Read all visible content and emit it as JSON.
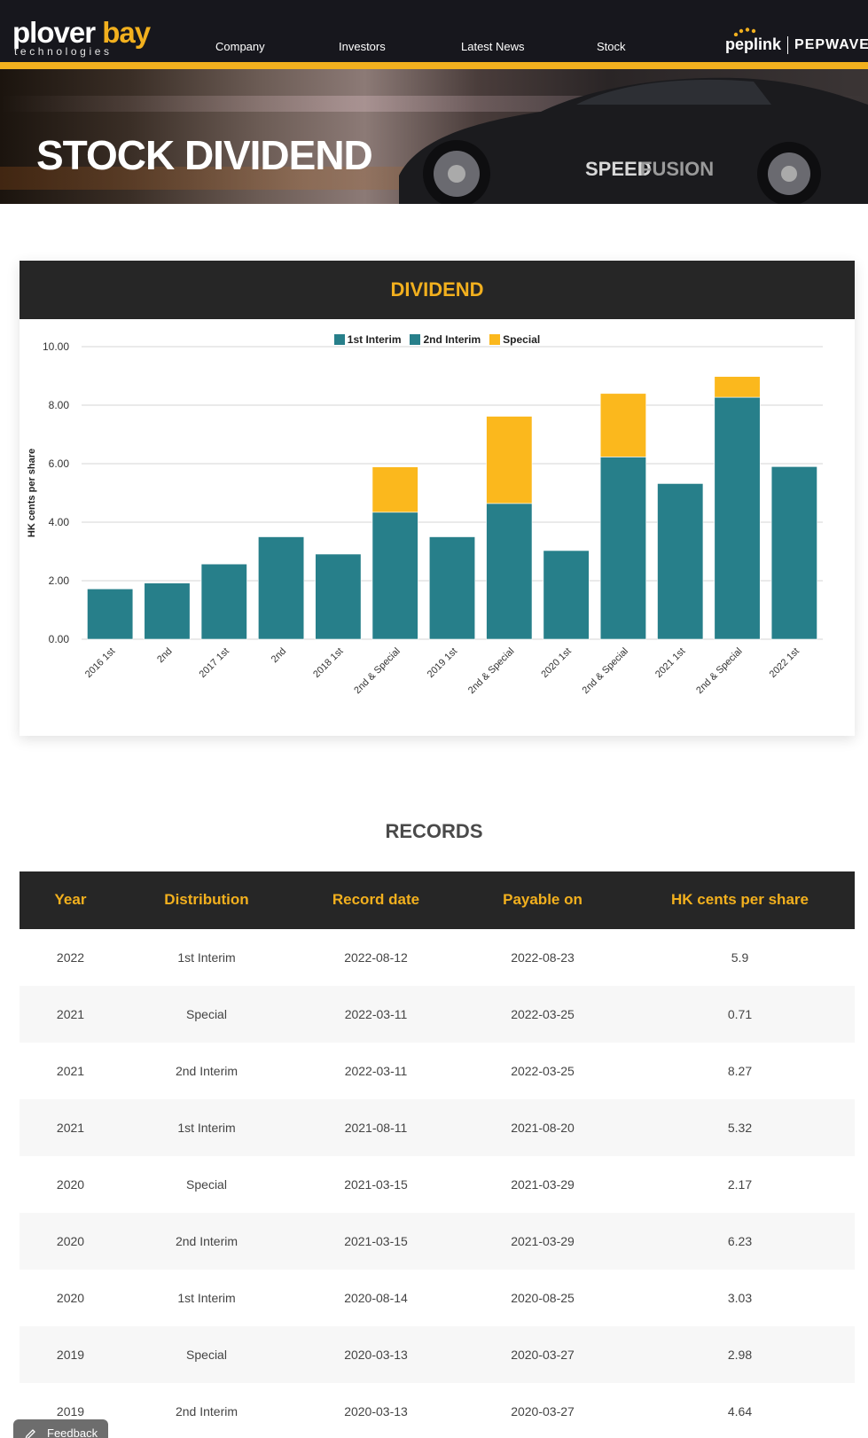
{
  "header": {
    "logo_main": "plover",
    "logo_accent": "bay",
    "logo_sub": "technologies",
    "nav": [
      {
        "label": "Company"
      },
      {
        "label": "Investors"
      },
      {
        "label": "Latest News"
      },
      {
        "label": "Stock"
      }
    ],
    "brand_left": "peplink",
    "brand_right": "PEPWAVE",
    "accent_color": "#f2b01e"
  },
  "hero": {
    "title": "STOCK DIVIDEND",
    "car_text_1": "SPEED",
    "car_text_2": "FUSION"
  },
  "dividend": {
    "title": "DIVIDEND",
    "chart_data": {
      "type": "bar",
      "stacked": true,
      "categories": [
        "2016 1st",
        "2nd",
        "2017 1st",
        "2nd",
        "2018 1st",
        "2nd & Special",
        "2019 1st",
        "2nd & Special",
        "2020 1st",
        "2nd & Special",
        "2021 1st",
        "2nd & Special",
        "2022 1st"
      ],
      "series": [
        {
          "name": "1st Interim",
          "color": "#277f8a",
          "values": [
            1.72,
            0,
            2.57,
            0,
            2.91,
            0,
            3.5,
            0,
            3.03,
            0,
            5.32,
            0,
            5.9
          ]
        },
        {
          "name": "2nd Interim",
          "color": "#277f8a",
          "values": [
            0,
            1.92,
            0,
            3.5,
            0,
            4.34,
            0,
            4.64,
            0,
            6.23,
            0,
            8.27,
            0
          ]
        },
        {
          "name": "Special",
          "color": "#fbb81d",
          "values": [
            0,
            0,
            0,
            0,
            0,
            1.55,
            0,
            2.98,
            0,
            2.17,
            0,
            0.71,
            0
          ]
        }
      ],
      "ylabel": "HK cents per share",
      "xlabel": "",
      "ylim": [
        0,
        10
      ],
      "yticks": [
        "0.00",
        "2.00",
        "4.00",
        "6.00",
        "8.00",
        "10.00"
      ],
      "grid": true,
      "legend": "top-center"
    }
  },
  "records": {
    "title": "RECORDS",
    "columns": [
      "Year",
      "Distribution",
      "Record date",
      "Payable on",
      "HK cents per share"
    ],
    "rows": [
      [
        "2022",
        "1st Interim",
        "2022-08-12",
        "2022-08-23",
        "5.9"
      ],
      [
        "2021",
        "Special",
        "2022-03-11",
        "2022-03-25",
        "0.71"
      ],
      [
        "2021",
        "2nd Interim",
        "2022-03-11",
        "2022-03-25",
        "8.27"
      ],
      [
        "2021",
        "1st Interim",
        "2021-08-11",
        "2021-08-20",
        "5.32"
      ],
      [
        "2020",
        "Special",
        "2021-03-15",
        "2021-03-29",
        "2.17"
      ],
      [
        "2020",
        "2nd Interim",
        "2021-03-15",
        "2021-03-29",
        "6.23"
      ],
      [
        "2020",
        "1st Interim",
        "2020-08-14",
        "2020-08-25",
        "3.03"
      ],
      [
        "2019",
        "Special",
        "2020-03-13",
        "2020-03-27",
        "2.98"
      ],
      [
        "2019",
        "2nd Interim",
        "2020-03-13",
        "2020-03-27",
        "4.64"
      ]
    ]
  },
  "feedback": {
    "label": "Feedback",
    "icon": "pencil-icon"
  }
}
